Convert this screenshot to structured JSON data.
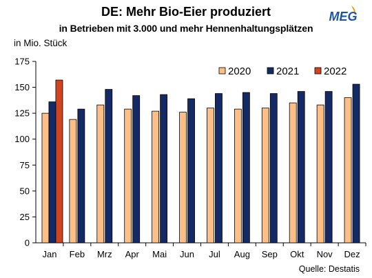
{
  "header": {
    "title": "DE: Mehr Bio-Eier produziert",
    "subtitle": "in Betrieben mit 3.000 und mehr Hennenhaltungsplätzen",
    "unit": "in Mio. Stück",
    "logo_text": "MEG"
  },
  "footer": {
    "source": "Quelle: Destatis"
  },
  "colors": {
    "s2020": "#fdbf86",
    "s2021": "#142a66",
    "s2022": "#d2441f",
    "logo": "#1b56a6",
    "logo_accent": "#f19a1e"
  },
  "chart_data": {
    "type": "bar",
    "title": "DE: Mehr Bio-Eier produziert",
    "subtitle": "in Betrieben mit 3.000 und mehr Hennenhaltungsplätzen",
    "ylabel": "in Mio. Stück",
    "ylim": [
      0,
      175
    ],
    "yticks": [
      0,
      25,
      50,
      75,
      100,
      125,
      150,
      175
    ],
    "grid": false,
    "legend_position": "top-right",
    "categories": [
      "Jan",
      "Feb",
      "Mrz",
      "Apr",
      "Mai",
      "Jun",
      "Jul",
      "Aug",
      "Sep",
      "Okt",
      "Nov",
      "Dez"
    ],
    "series": [
      {
        "name": "2020",
        "values": [
          125,
          119,
          133,
          129,
          127,
          126,
          130,
          129,
          130,
          135,
          133,
          140
        ]
      },
      {
        "name": "2021",
        "values": [
          136,
          129,
          148,
          142,
          143,
          139,
          144,
          145,
          144,
          146,
          146,
          153
        ]
      },
      {
        "name": "2022",
        "values": [
          157,
          null,
          null,
          null,
          null,
          null,
          null,
          null,
          null,
          null,
          null,
          null
        ]
      }
    ]
  }
}
